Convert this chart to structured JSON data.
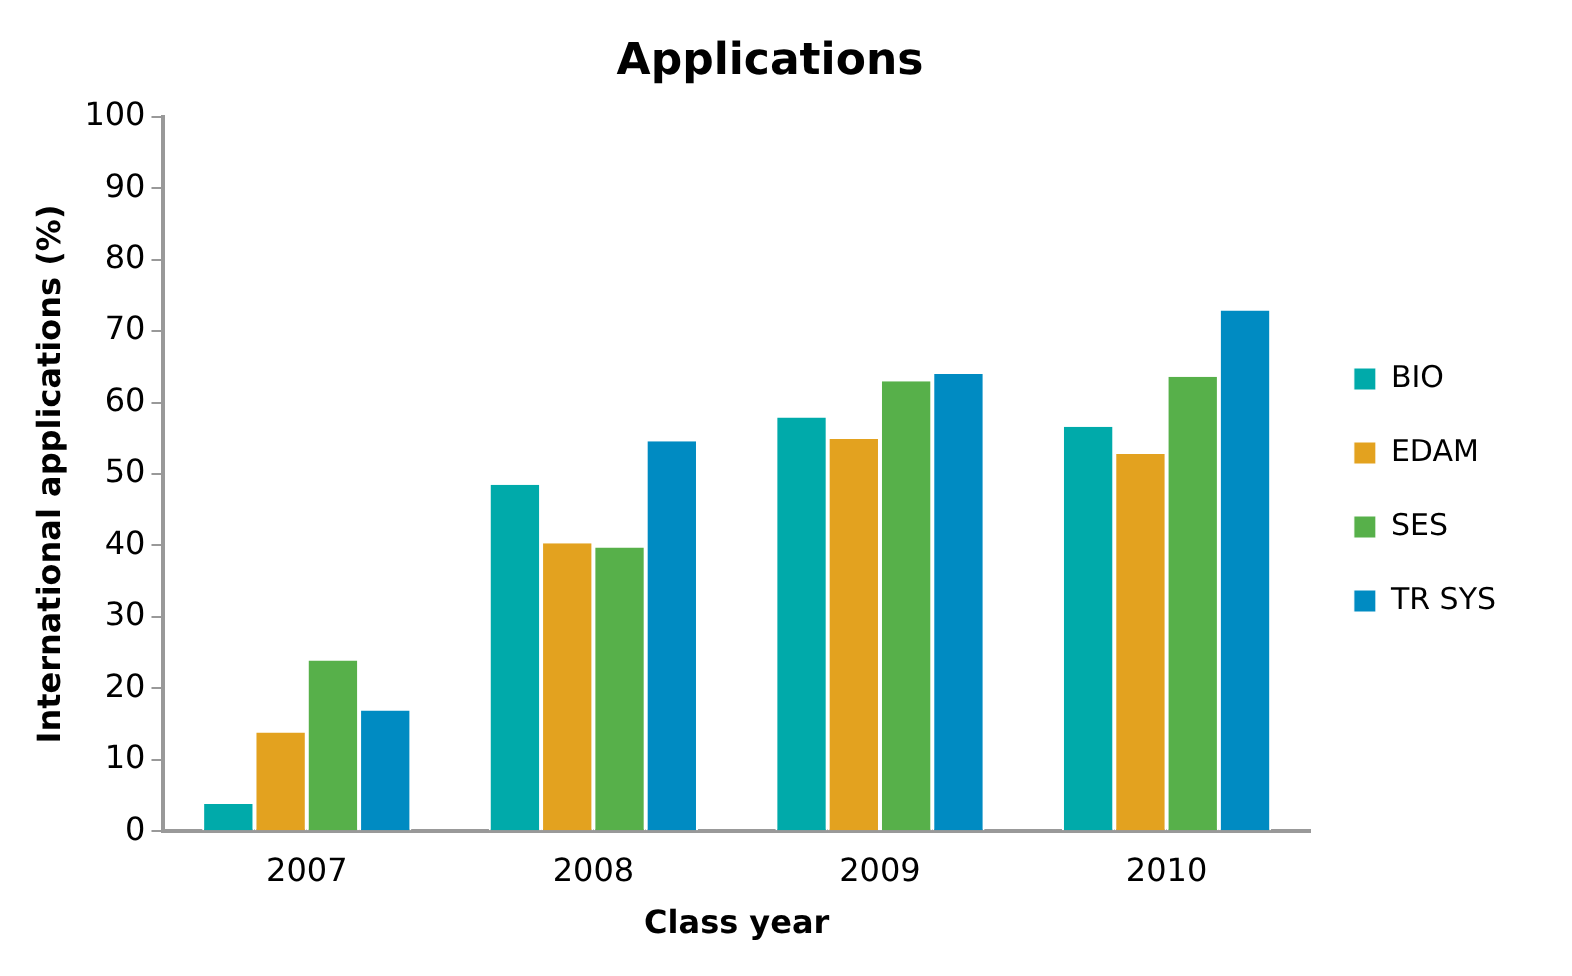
{
  "chart_data": {
    "type": "bar",
    "title": "Applications",
    "xlabel": "Class year",
    "ylabel": "International applications (%)",
    "categories": [
      "2007",
      "2008",
      "2009",
      "2010"
    ],
    "series": [
      {
        "name": "BIO",
        "color": "#00aaaa",
        "values": [
          3.8,
          48.5,
          57.9,
          56.6
        ]
      },
      {
        "name": "EDAM",
        "color": "#e3a21f",
        "values": [
          13.8,
          40.3,
          54.9,
          52.8
        ]
      },
      {
        "name": "SES",
        "color": "#57b04a",
        "values": [
          23.9,
          39.7,
          63,
          63.6
        ]
      },
      {
        "name": "TR SYS",
        "color": "#008bc2",
        "values": [
          16.9,
          54.6,
          64,
          72.9
        ]
      }
    ],
    "ylim": [
      0,
      100
    ],
    "yticks": [
      0,
      10,
      20,
      30,
      40,
      50,
      60,
      70,
      80,
      90,
      100
    ],
    "grid": false,
    "legend": "right"
  }
}
